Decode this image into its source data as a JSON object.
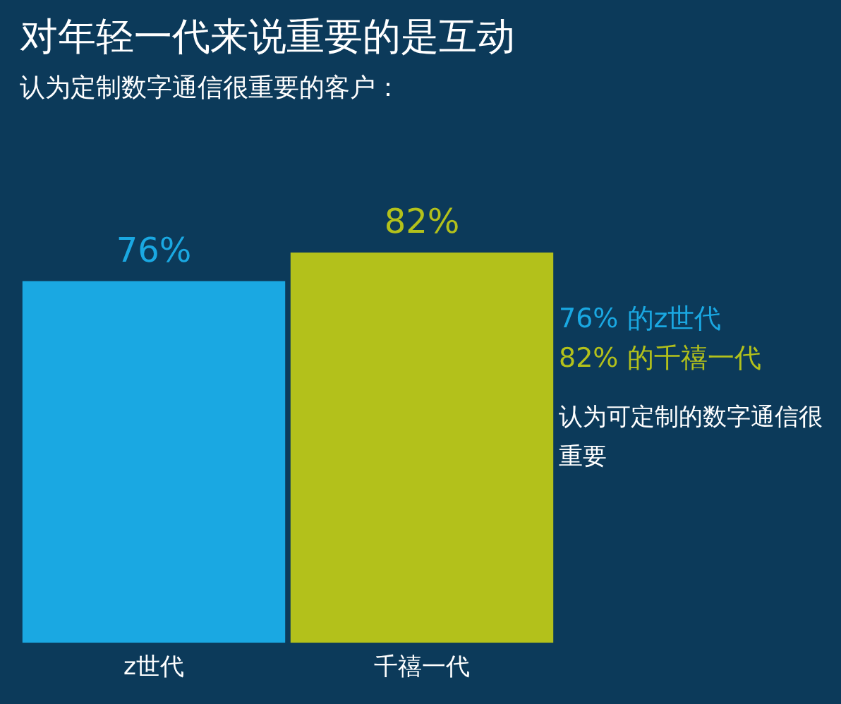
{
  "chart_data": {
    "type": "bar",
    "title": "对年轻一代来说重要的是互动",
    "subtitle": "认为定制数字通信很重要的客户：",
    "categories": [
      "z世代",
      "千禧一代"
    ],
    "values": [
      76,
      82
    ],
    "colors": [
      "#1aa8e2",
      "#b3c11b"
    ],
    "value_labels": [
      "76%",
      "82%"
    ],
    "tick_labels": "x",
    "grid": false,
    "legend": false,
    "annotations": [
      "76% 的z世代",
      "82% 的千禧一代",
      "认为可定制的数字通信很重要"
    ]
  }
}
